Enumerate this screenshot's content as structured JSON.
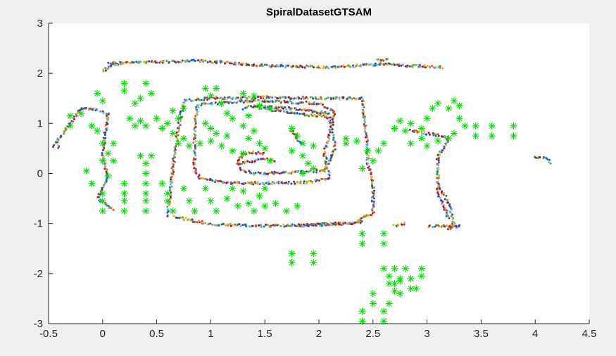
{
  "chart_data": {
    "type": "scatter",
    "title": "SpiralDatasetGTSAM",
    "xlabel": "",
    "ylabel": "",
    "xlim": [
      -0.5,
      4.5
    ],
    "ylim": [
      -3,
      3
    ],
    "xticks": [
      -0.5,
      0,
      0.5,
      1,
      1.5,
      2,
      2.5,
      3,
      3.5,
      4,
      4.5
    ],
    "xtick_labels": [
      "-0.5",
      "0",
      "0.5",
      "1",
      "1.5",
      "2",
      "2.5",
      "3",
      "3.5",
      "4",
      "4.5"
    ],
    "yticks": [
      -3,
      -2,
      -1,
      0,
      1,
      2,
      3
    ],
    "ytick_labels": [
      "-3",
      "-2",
      "-1",
      "0",
      "1",
      "2",
      "3"
    ],
    "grid": false,
    "colors": {
      "figure_bg": "#f0f0f0",
      "axes_bg": "#ffffff",
      "axis": "#262626",
      "landmark": "#00e000",
      "trajectory_palette": [
        "#0072bd",
        "#d95319",
        "#edb120",
        "#7e2f8e",
        "#77ac30",
        "#4dbeee",
        "#a2142f"
      ]
    },
    "series": [
      {
        "marker": "dot",
        "kind": "trajectory",
        "paths": [
          [
            [
              0.05,
              2.2
            ],
            [
              0.9,
              2.25
            ],
            [
              1.5,
              2.15
            ],
            [
              2.1,
              2.12
            ],
            [
              2.6,
              2.18
            ],
            [
              3.15,
              2.12
            ]
          ],
          [
            [
              -0.45,
              0.55
            ],
            [
              -0.3,
              1.0
            ],
            [
              -0.2,
              1.3
            ],
            [
              -0.1,
              1.28
            ],
            [
              0.05,
              1.2
            ],
            [
              0.0,
              0.4
            ],
            [
              0.05,
              -0.1
            ],
            [
              -0.05,
              -0.5
            ],
            [
              0.1,
              -0.72
            ]
          ],
          [
            [
              0.0,
              2.05
            ],
            [
              0.1,
              2.18
            ],
            [
              0.2,
              2.2
            ]
          ],
          [
            [
              0.6,
              -0.85
            ],
            [
              0.65,
              0.1
            ],
            [
              0.7,
              0.9
            ],
            [
              0.75,
              1.45
            ],
            [
              1.0,
              1.5
            ],
            [
              1.5,
              1.52
            ],
            [
              2.0,
              1.5
            ],
            [
              2.4,
              1.5
            ],
            [
              2.45,
              0.5
            ],
            [
              2.45,
              0.2
            ],
            [
              2.5,
              -0.2
            ],
            [
              2.5,
              -0.8
            ],
            [
              2.3,
              -1.0
            ],
            [
              1.5,
              -1.05
            ],
            [
              1.0,
              -1.02
            ],
            [
              0.65,
              -0.85
            ]
          ],
          [
            [
              0.88,
              1.38
            ],
            [
              1.4,
              1.45
            ],
            [
              2.0,
              1.4
            ],
            [
              2.15,
              1.22
            ],
            [
              2.05,
              0.4
            ],
            [
              2.1,
              -0.1
            ],
            [
              1.9,
              -0.18
            ],
            [
              1.2,
              -0.2
            ],
            [
              0.9,
              -0.1
            ],
            [
              0.85,
              0.1
            ],
            [
              0.85,
              0.9
            ],
            [
              0.88,
              1.38
            ]
          ],
          [
            [
              1.3,
              1.3
            ],
            [
              1.4,
              1.35
            ],
            [
              1.7,
              1.3
            ],
            [
              2.1,
              1.2
            ]
          ],
          [
            [
              1.45,
              1.3
            ],
            [
              1.6,
              1.25
            ],
            [
              2.1,
              1.12
            ],
            [
              2.15,
              0.5
            ],
            [
              2.05,
              0.05
            ],
            [
              1.4,
              0.0
            ],
            [
              1.3,
              0.05
            ],
            [
              1.25,
              0.2
            ],
            [
              1.3,
              0.4
            ]
          ],
          [
            [
              1.3,
              0.4
            ],
            [
              1.4,
              0.42
            ],
            [
              1.5,
              0.38
            ]
          ],
          [
            [
              1.25,
              0.2
            ],
            [
              1.4,
              0.25
            ],
            [
              1.5,
              0.3
            ],
            [
              1.6,
              0.25
            ]
          ],
          [
            [
              1.75,
              0.85
            ],
            [
              1.8,
              0.7
            ],
            [
              1.85,
              0.55
            ]
          ],
          [
            [
              1.8,
              -1.05
            ],
            [
              2.2,
              -1.0
            ],
            [
              2.4,
              -0.98
            ]
          ],
          [
            [
              2.7,
              -1.05
            ],
            [
              2.8,
              -1.0
            ]
          ],
          [
            [
              3.1,
              -0.2
            ],
            [
              3.2,
              -0.6
            ],
            [
              3.25,
              -1.0
            ],
            [
              3.2,
              -1.1
            ],
            [
              3.3,
              -1.05
            ],
            [
              3.0,
              -1.05
            ]
          ],
          [
            [
              2.85,
              0.85
            ],
            [
              3.0,
              0.8
            ],
            [
              3.15,
              0.75
            ],
            [
              3.2,
              0.7
            ],
            [
              3.1,
              0.3
            ],
            [
              3.1,
              -0.4
            ],
            [
              3.2,
              -0.9
            ]
          ],
          [
            [
              4.0,
              0.32
            ],
            [
              4.1,
              0.3
            ],
            [
              4.15,
              0.2
            ]
          ],
          [
            [
              -0.42,
              0.5
            ],
            [
              -0.4,
              0.6
            ]
          ],
          [
            [
              2.55,
              2.25
            ],
            [
              2.65,
              2.28
            ]
          ]
        ]
      },
      {
        "marker": "asterisk",
        "kind": "landmarks",
        "points": [
          [
            0.2,
            1.8
          ],
          [
            0.4,
            1.8
          ],
          [
            0.2,
            1.65
          ],
          [
            0.45,
            1.6
          ],
          [
            0.35,
            1.5
          ],
          [
            0.3,
            1.4
          ],
          [
            0.25,
            1.1
          ],
          [
            0.35,
            1.05
          ],
          [
            0.3,
            0.95
          ],
          [
            0.4,
            0.95
          ],
          [
            0.5,
            1.1
          ],
          [
            0.6,
            1.0
          ],
          [
            0.7,
            1.1
          ],
          [
            0.65,
            1.25
          ],
          [
            0.75,
            1.3
          ],
          [
            0.55,
            0.9
          ],
          [
            0.65,
            0.8
          ],
          [
            0.75,
            0.7
          ],
          [
            0.7,
            0.6
          ],
          [
            0.8,
            0.55
          ],
          [
            0.95,
            1.7
          ],
          [
            1.05,
            1.7
          ],
          [
            1.0,
            1.55
          ],
          [
            1.1,
            1.4
          ],
          [
            1.15,
            1.2
          ],
          [
            1.2,
            1.1
          ],
          [
            0.95,
            1.0
          ],
          [
            1.0,
            0.9
          ],
          [
            1.05,
            0.8
          ],
          [
            1.15,
            0.75
          ],
          [
            1.0,
            0.65
          ],
          [
            0.9,
            0.6
          ],
          [
            1.1,
            0.55
          ],
          [
            1.2,
            0.45
          ],
          [
            1.3,
            1.6
          ],
          [
            1.4,
            1.55
          ],
          [
            1.45,
            1.35
          ],
          [
            1.55,
            1.3
          ],
          [
            1.35,
            1.15
          ],
          [
            1.3,
            0.95
          ],
          [
            1.4,
            0.85
          ],
          [
            1.35,
            0.7
          ],
          [
            1.45,
            0.6
          ],
          [
            1.5,
            0.5
          ],
          [
            1.3,
            0.4
          ],
          [
            1.55,
            0.25
          ],
          [
            1.75,
            0.9
          ],
          [
            1.8,
            0.75
          ],
          [
            1.85,
            0.6
          ],
          [
            1.95,
            0.55
          ],
          [
            1.75,
            0.45
          ],
          [
            1.85,
            0.35
          ],
          [
            1.9,
            0.2
          ],
          [
            1.95,
            0.1
          ],
          [
            1.85,
            0.0
          ],
          [
            2.25,
            0.7
          ],
          [
            2.35,
            0.65
          ],
          [
            2.25,
            0.6
          ],
          [
            0.35,
            0.35
          ],
          [
            0.45,
            0.35
          ],
          [
            0.4,
            0.2
          ],
          [
            0.4,
            0.0
          ],
          [
            0.4,
            -0.2
          ],
          [
            0.4,
            -0.4
          ],
          [
            0.4,
            -0.55
          ],
          [
            0.4,
            -0.75
          ],
          [
            0.55,
            -0.2
          ],
          [
            0.6,
            -0.4
          ],
          [
            0.6,
            -0.55
          ],
          [
            0.65,
            -0.75
          ],
          [
            0.75,
            -0.3
          ],
          [
            0.8,
            -0.55
          ],
          [
            0.85,
            -0.75
          ],
          [
            0.95,
            -0.3
          ],
          [
            1.0,
            -0.55
          ],
          [
            1.05,
            -0.75
          ],
          [
            1.15,
            -0.5
          ],
          [
            1.2,
            -0.3
          ],
          [
            1.3,
            -0.35
          ],
          [
            1.25,
            -0.65
          ],
          [
            1.35,
            -0.6
          ],
          [
            1.45,
            -0.45
          ],
          [
            1.5,
            -0.3
          ],
          [
            1.4,
            -0.75
          ],
          [
            1.5,
            -0.65
          ],
          [
            1.6,
            -0.6
          ],
          [
            1.7,
            -0.75
          ],
          [
            1.8,
            -0.65
          ],
          [
            2.45,
            0.45
          ],
          [
            2.5,
            0.25
          ],
          [
            2.4,
            0.1
          ],
          [
            2.55,
            0.45
          ],
          [
            2.6,
            0.6
          ],
          [
            -0.3,
            1.15
          ],
          [
            -0.2,
            1.2
          ],
          [
            -0.3,
            0.95
          ],
          [
            -0.1,
            0.95
          ],
          [
            -0.05,
            0.85
          ],
          [
            0.0,
            0.6
          ],
          [
            0.1,
            0.6
          ],
          [
            0.05,
            0.4
          ],
          [
            0.0,
            0.25
          ],
          [
            0.1,
            0.25
          ],
          [
            -0.15,
            0.05
          ],
          [
            0.05,
            -0.05
          ],
          [
            -0.1,
            -0.2
          ],
          [
            0.0,
            -0.4
          ],
          [
            0.0,
            -0.55
          ],
          [
            0.0,
            -0.75
          ],
          [
            0.2,
            -0.2
          ],
          [
            0.2,
            -0.4
          ],
          [
            0.2,
            -0.55
          ],
          [
            0.2,
            -0.75
          ],
          [
            -0.05,
            1.6
          ],
          [
            0.0,
            1.45
          ],
          [
            2.85,
            0.6
          ],
          [
            2.95,
            0.7
          ],
          [
            3.0,
            1.1
          ],
          [
            3.05,
            1.3
          ],
          [
            3.1,
            1.4
          ],
          [
            3.2,
            1.3
          ],
          [
            3.25,
            1.45
          ],
          [
            3.3,
            1.35
          ],
          [
            3.3,
            1.1
          ],
          [
            3.35,
            0.95
          ],
          [
            3.25,
            0.8
          ],
          [
            3.2,
            0.7
          ],
          [
            3.1,
            0.65
          ],
          [
            2.95,
            0.9
          ],
          [
            2.8,
            0.85
          ],
          [
            2.75,
            1.05
          ],
          [
            2.7,
            0.9
          ],
          [
            2.85,
            1.0
          ],
          [
            3.0,
            0.55
          ],
          [
            3.45,
            0.95
          ],
          [
            3.6,
            0.95
          ],
          [
            3.8,
            0.95
          ],
          [
            3.45,
            0.75
          ],
          [
            3.6,
            0.75
          ],
          [
            3.8,
            0.75
          ],
          [
            2.4,
            -1.2
          ],
          [
            2.4,
            -1.4
          ],
          [
            2.6,
            -1.2
          ],
          [
            2.6,
            -1.4
          ],
          [
            1.75,
            -1.6
          ],
          [
            1.75,
            -1.78
          ],
          [
            1.95,
            -1.6
          ],
          [
            1.95,
            -1.78
          ],
          [
            2.6,
            -1.9
          ],
          [
            2.7,
            -1.9
          ],
          [
            2.8,
            -1.9
          ],
          [
            2.95,
            -1.9
          ],
          [
            2.65,
            -2.05
          ],
          [
            2.75,
            -2.1
          ],
          [
            2.85,
            -2.1
          ],
          [
            2.95,
            -2.05
          ],
          [
            2.65,
            -2.2
          ],
          [
            2.7,
            -2.2
          ],
          [
            2.75,
            -2.15
          ],
          [
            2.85,
            -2.3
          ],
          [
            2.9,
            -2.3
          ],
          [
            2.7,
            -2.35
          ],
          [
            2.75,
            -2.4
          ],
          [
            2.5,
            -2.4
          ],
          [
            2.5,
            -2.6
          ],
          [
            2.65,
            -2.6
          ],
          [
            2.4,
            -2.75
          ],
          [
            2.6,
            -2.75
          ],
          [
            2.4,
            -2.95
          ],
          [
            2.6,
            -2.95
          ]
        ]
      }
    ]
  }
}
